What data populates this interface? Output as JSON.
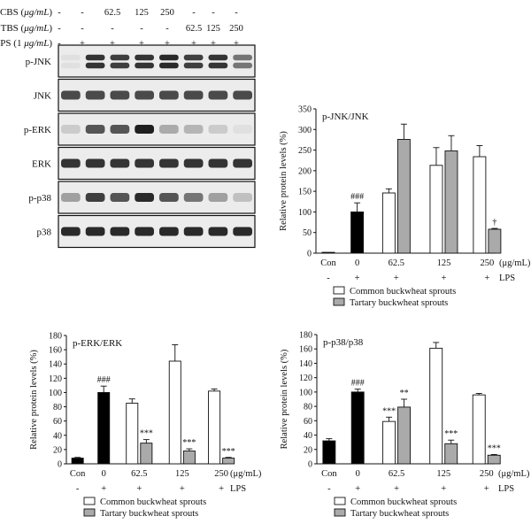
{
  "blot": {
    "rows": [
      {
        "label": "CBS (μg/mL)",
        "values": [
          "-",
          "-",
          "62.5",
          "125",
          "250",
          "-",
          "-",
          "-"
        ]
      },
      {
        "label": "TBS (μg/mL)",
        "values": [
          "-",
          "-",
          "-",
          "-",
          "-",
          "62.5",
          "125",
          "250"
        ]
      },
      {
        "label": "LPS (1 μg/mL)",
        "values": [
          "-",
          "+",
          "+",
          "+",
          "+",
          "+",
          "+",
          "+"
        ]
      }
    ],
    "bands": [
      {
        "label": "p-JNK",
        "intensity": [
          0.05,
          0.85,
          0.8,
          0.85,
          0.9,
          0.8,
          0.85,
          0.55
        ],
        "double": true
      },
      {
        "label": "JNK",
        "intensity": [
          0.75,
          0.75,
          0.75,
          0.75,
          0.75,
          0.75,
          0.75,
          0.75
        ],
        "double": false
      },
      {
        "label": "p-ERK",
        "intensity": [
          0.15,
          0.7,
          0.7,
          0.95,
          0.3,
          0.25,
          0.15,
          0.05
        ],
        "double": false
      },
      {
        "label": "ERK",
        "intensity": [
          0.85,
          0.85,
          0.85,
          0.85,
          0.85,
          0.85,
          0.85,
          0.85
        ],
        "double": false
      },
      {
        "label": "p-p38",
        "intensity": [
          0.35,
          0.8,
          0.7,
          0.9,
          0.7,
          0.55,
          0.35,
          0.2
        ],
        "double": false
      },
      {
        "label": "p38",
        "intensity": [
          0.9,
          0.9,
          0.9,
          0.9,
          0.9,
          0.9,
          0.9,
          0.9
        ],
        "double": false
      }
    ]
  },
  "chart_data": [
    {
      "type": "bar",
      "title": "p-JNK/JNK",
      "ylabel": "Relative protein levels (%)",
      "ylim": [
        0,
        350
      ],
      "yticks": [
        0,
        50,
        100,
        150,
        200,
        250,
        300,
        350
      ],
      "groups": [
        {
          "label": "Con",
          "lps": "-",
          "bars": [
            {
              "series": "Control",
              "value": 2,
              "err": 0
            }
          ]
        },
        {
          "label": "0",
          "lps": "+",
          "bars": [
            {
              "series": "LPS",
              "value": 100,
              "err": 22,
              "annot": "###"
            }
          ]
        },
        {
          "label": "62.5",
          "lps": "+",
          "bars": [
            {
              "series": "Common buckwheat sprouts",
              "value": 146,
              "err": 10
            },
            {
              "series": "Tartary buckwheat sprouts",
              "value": 276,
              "err": 37
            }
          ]
        },
        {
          "label": "125",
          "lps": "+",
          "bars": [
            {
              "series": "Common buckwheat sprouts",
              "value": 213,
              "err": 43
            },
            {
              "series": "Tartary buckwheat sprouts",
              "value": 248,
              "err": 37
            }
          ]
        },
        {
          "label": "250",
          "lps": "+",
          "bars": [
            {
              "series": "Common buckwheat sprouts",
              "value": 234,
              "err": 27
            },
            {
              "series": "Tartary buckwheat sprouts",
              "value": 58,
              "err": 2,
              "annot": "†"
            }
          ]
        }
      ],
      "unit": "(μg/mL)",
      "lps_label": "LPS",
      "legend": [
        "Common buckwheat sprouts",
        "Tartary buckwheat sprouts"
      ]
    },
    {
      "type": "bar",
      "title": "p-ERK/ERK",
      "ylabel": "Relative protein levels (%)",
      "ylim": [
        0,
        180
      ],
      "yticks": [
        0,
        20,
        40,
        60,
        80,
        100,
        120,
        140,
        160,
        180
      ],
      "groups": [
        {
          "label": "Con",
          "lps": "-",
          "bars": [
            {
              "series": "Control",
              "value": 8,
              "err": 1
            }
          ]
        },
        {
          "label": "0",
          "lps": "+",
          "bars": [
            {
              "series": "LPS",
              "value": 100,
              "err": 9,
              "annot": "###"
            }
          ]
        },
        {
          "label": "62.5",
          "lps": "+",
          "bars": [
            {
              "series": "Common buckwheat sprouts",
              "value": 85,
              "err": 6
            },
            {
              "series": "Tartary buckwheat sprouts",
              "value": 29,
              "err": 5,
              "annot": "***"
            }
          ]
        },
        {
          "label": "125",
          "lps": "+",
          "bars": [
            {
              "series": "Common buckwheat sprouts",
              "value": 144,
              "err": 23
            },
            {
              "series": "Tartary buckwheat sprouts",
              "value": 18,
              "err": 3,
              "annot": "***"
            }
          ]
        },
        {
          "label": "250",
          "lps": "+",
          "bars": [
            {
              "series": "Common buckwheat sprouts",
              "value": 102,
              "err": 3
            },
            {
              "series": "Tartary buckwheat sprouts",
              "value": 8,
              "err": 1,
              "annot": "***"
            }
          ]
        }
      ],
      "unit": "(μg/mL)",
      "lps_label": "LPS",
      "legend": [
        "Common buckwheat sprouts",
        "Tartary buckwheat sprouts"
      ]
    },
    {
      "type": "bar",
      "title": "p-p38/p38",
      "ylabel": "Relative protein levels (%)",
      "ylim": [
        0,
        180
      ],
      "yticks": [
        0,
        20,
        40,
        60,
        80,
        100,
        120,
        140,
        160,
        180
      ],
      "groups": [
        {
          "label": "Con",
          "lps": "-",
          "bars": [
            {
              "series": "Control",
              "value": 32,
              "err": 3
            }
          ]
        },
        {
          "label": "0",
          "lps": "+",
          "bars": [
            {
              "series": "LPS",
              "value": 100,
              "err": 4,
              "annot": "###"
            }
          ]
        },
        {
          "label": "62.5",
          "lps": "+",
          "bars": [
            {
              "series": "Common buckwheat sprouts",
              "value": 59,
              "err": 6,
              "annot": "***"
            },
            {
              "series": "Tartary buckwheat sprouts",
              "value": 79,
              "err": 11,
              "annot": "**"
            }
          ]
        },
        {
          "label": "125",
          "lps": "+",
          "bars": [
            {
              "series": "Common buckwheat sprouts",
              "value": 161,
              "err": 8
            },
            {
              "series": "Tartary buckwheat sprouts",
              "value": 28,
              "err": 5,
              "annot": "***"
            }
          ]
        },
        {
          "label": "250",
          "lps": "+",
          "bars": [
            {
              "series": "Common buckwheat sprouts",
              "value": 96,
              "err": 2
            },
            {
              "series": "Tartary buckwheat sprouts",
              "value": 12,
              "err": 1,
              "annot": "***"
            }
          ]
        }
      ],
      "unit": "(μg/mL)",
      "lps_label": "LPS",
      "legend": [
        "Common buckwheat sprouts",
        "Tartary buckwheat sprouts"
      ]
    }
  ],
  "colors": {
    "control": "#000000",
    "common": "#ffffff",
    "tartary": "#aaaaaa"
  }
}
